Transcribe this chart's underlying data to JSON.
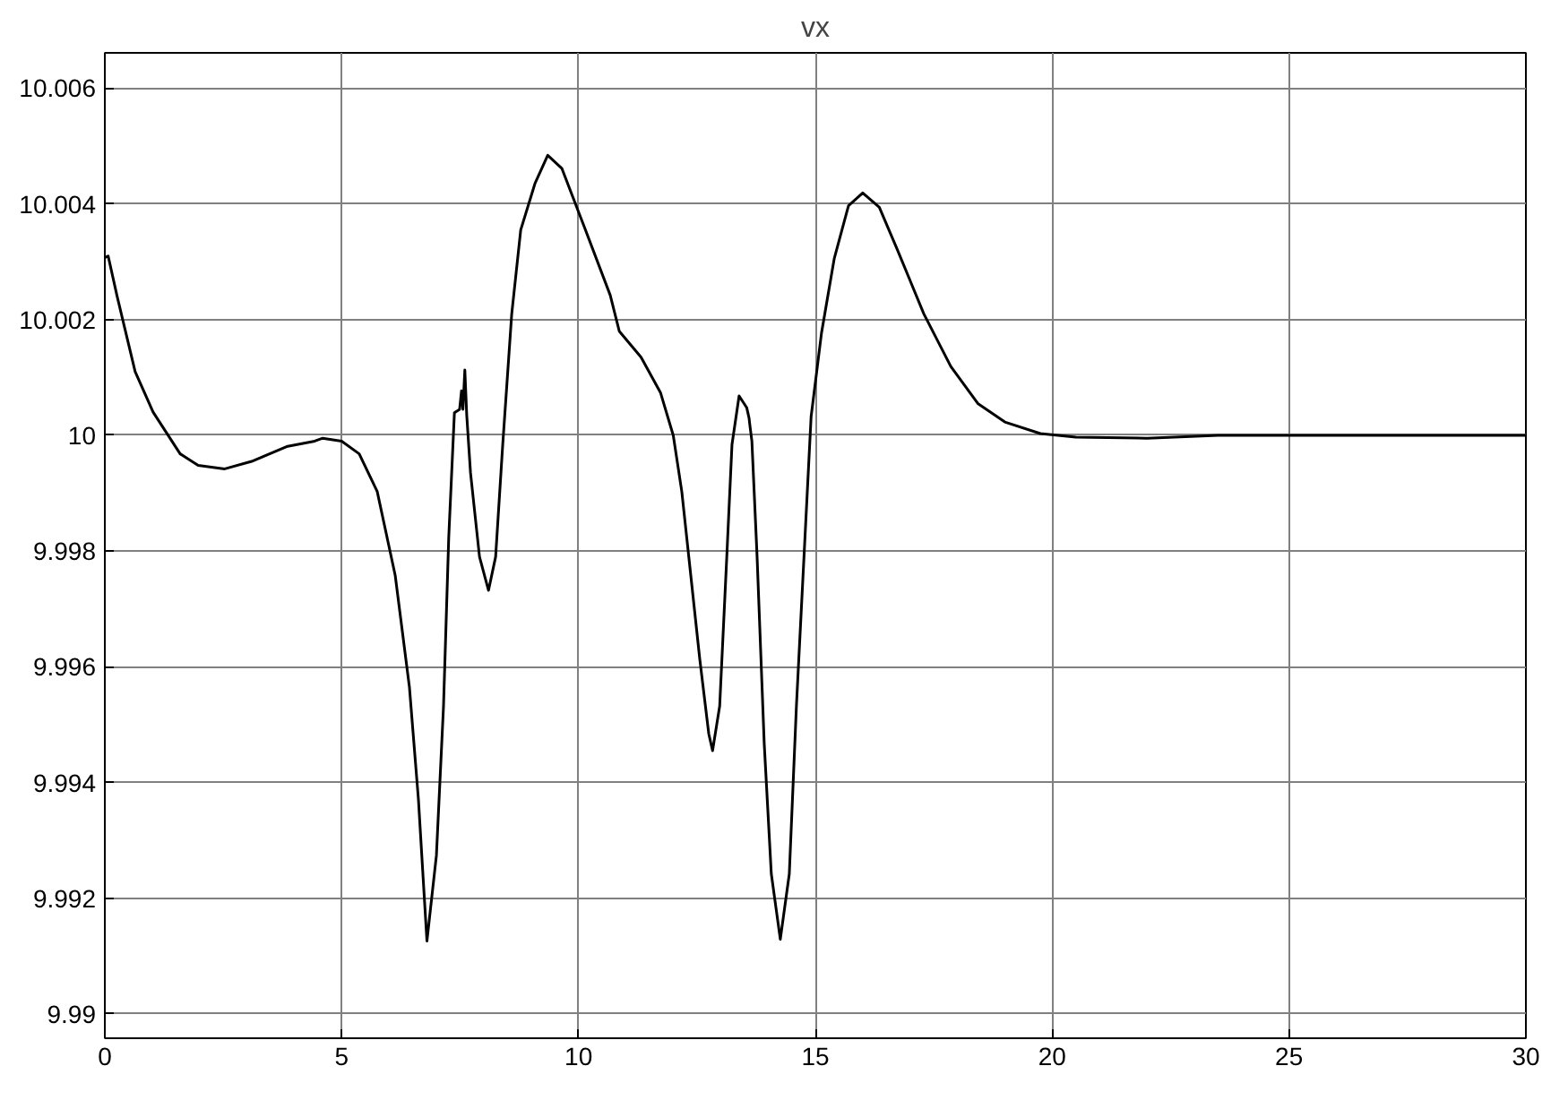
{
  "chart_data": {
    "type": "line",
    "title": "vx",
    "xlim": [
      0,
      30
    ],
    "xticks": [
      0,
      5,
      10,
      15,
      20,
      25,
      30
    ],
    "ylim": [
      9.98958,
      10.00661
    ],
    "yticks": [
      9.99,
      9.992,
      9.994,
      9.996,
      9.998,
      10,
      10.002,
      10.004,
      10.006
    ],
    "grid": true,
    "marker": "none",
    "line_style": "solid",
    "series": [
      {
        "color": "#000000",
        "x": [
          0,
          0.07,
          0.26,
          0.64,
          1.02,
          1.59,
          1.97,
          2.53,
          3.1,
          3.86,
          4.43,
          4.6,
          5.0,
          5.37,
          5.75,
          6.13,
          6.43,
          6.62,
          6.8,
          7.0,
          7.15,
          7.26,
          7.38,
          7.49,
          7.53,
          7.56,
          7.6,
          7.64,
          7.72,
          7.91,
          8.1,
          8.25,
          8.4,
          8.59,
          8.78,
          9.08,
          9.35,
          9.65,
          10.1,
          10.67,
          10.86,
          11.32,
          11.73,
          12.0,
          12.18,
          12.37,
          12.56,
          12.75,
          12.83,
          12.98,
          13.13,
          13.24,
          13.39,
          13.55,
          13.6,
          13.62,
          13.66,
          13.77,
          13.92,
          14.07,
          14.26,
          14.45,
          14.6,
          14.76,
          14.91,
          15.13,
          15.4,
          15.7,
          16.0,
          16.35,
          16.72,
          17.29,
          17.86,
          18.43,
          19.0,
          19.75,
          20.5,
          22.0,
          23.5,
          25,
          30
        ],
        "values": [
          10.00307,
          10.0031,
          10.0024,
          10.0011,
          10.0004,
          9.99968,
          9.99948,
          9.99942,
          9.99955,
          9.99981,
          9.9999,
          9.99995,
          9.9999,
          9.99968,
          9.99903,
          9.99758,
          9.99565,
          9.99371,
          9.99126,
          9.99274,
          9.99532,
          9.99823,
          10.00039,
          10.00045,
          10.00077,
          10.00045,
          10.00113,
          10.00035,
          9.99935,
          9.9979,
          9.99732,
          9.9979,
          9.99984,
          10.0021,
          10.00355,
          10.00435,
          10.00484,
          10.00461,
          10.00365,
          10.00242,
          10.0018,
          10.00135,
          10.00074,
          10.0,
          9.99903,
          9.99758,
          9.99613,
          9.99484,
          9.99455,
          9.99532,
          9.9979,
          9.99984,
          10.00068,
          10.00048,
          10.0003,
          10.00016,
          9.9999,
          9.9979,
          9.99468,
          9.99242,
          9.99129,
          9.99242,
          9.99532,
          9.9979,
          10.00032,
          10.00177,
          10.00306,
          10.00397,
          10.00419,
          10.00394,
          10.00323,
          10.0021,
          10.00119,
          10.00055,
          10.00023,
          10.00003,
          9.99997,
          9.99995,
          10.0,
          10.0,
          10.0
        ]
      }
    ]
  }
}
